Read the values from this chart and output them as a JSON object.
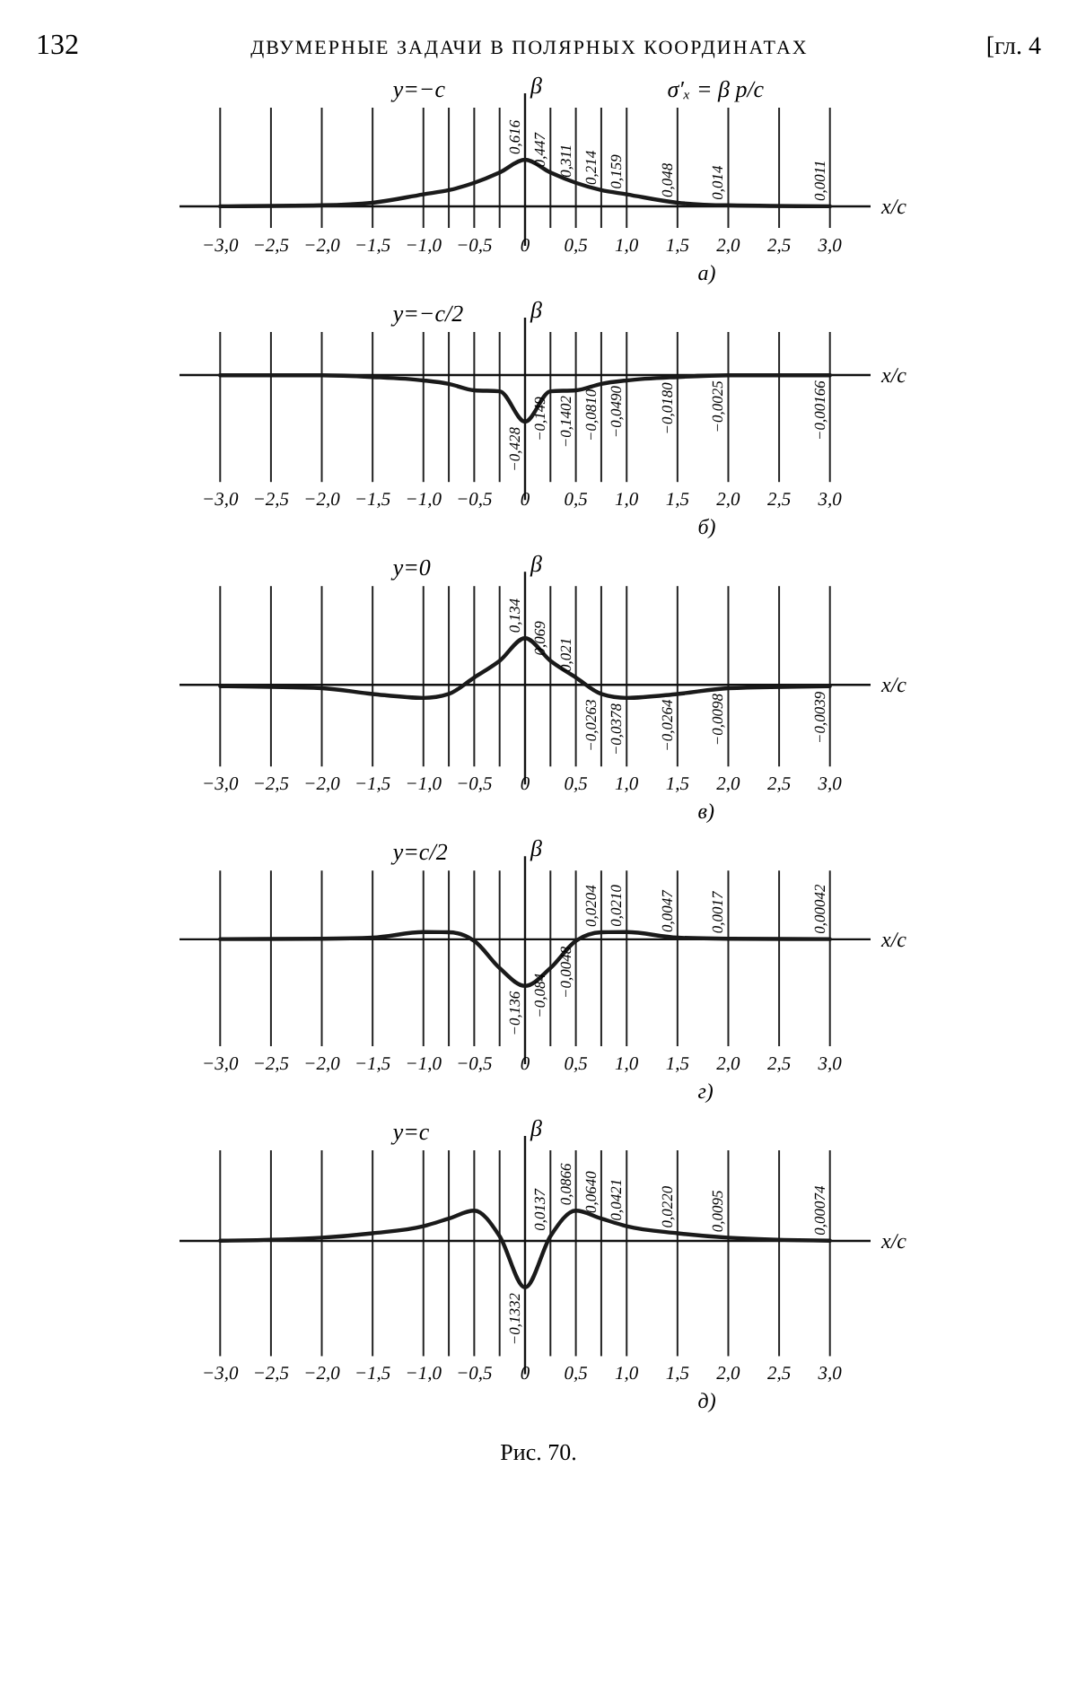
{
  "chart_data": [
    {
      "type": "line",
      "title": "y=−c",
      "xlabel": "x/c",
      "ylabel": "β",
      "annotations": [
        "132",
        "ДВУМЕРНЫЕ ЗАДАЧИ В ПОЛЯРНЫХ КООРДИНАТАХ",
        "[гл. 4",
        "σ′ₓ = β p/c",
        "а)"
      ],
      "xlim": [
        -3.4,
        3.4
      ],
      "xticks": [
        {
          "value": -3,
          "label": "−3,0"
        },
        {
          "value": -2.5,
          "label": "−2,5"
        },
        {
          "value": -2,
          "label": "−2,0"
        },
        {
          "value": -1.5,
          "label": "−1,5"
        },
        {
          "value": -1,
          "label": "−1,0"
        },
        {
          "value": -0.75,
          "label": null
        },
        {
          "value": -0.5,
          "label": "−0,5"
        },
        {
          "value": -0.25,
          "label": null
        },
        {
          "value": 0,
          "label": "0"
        },
        {
          "value": 0.25,
          "label": null
        },
        {
          "value": 0.5,
          "label": "0,5"
        },
        {
          "value": 0.75,
          "label": null
        },
        {
          "value": 1,
          "label": "1,0"
        },
        {
          "value": 1.5,
          "label": "1,5"
        },
        {
          "value": 2,
          "label": "2,0"
        },
        {
          "value": 2.5,
          "label": "2,5"
        },
        {
          "value": 3,
          "label": "3,0"
        }
      ],
      "grid": "x",
      "tick_labels": "x",
      "color": "#1a1a1a",
      "x": [
        -3,
        -2,
        -1.5,
        -1,
        -0.75,
        -0.5,
        -0.25,
        0,
        0.25,
        0.5,
        0.75,
        1,
        1.5,
        2,
        3
      ],
      "values": [
        0.0011,
        0.014,
        0.048,
        0.159,
        0.214,
        0.311,
        0.447,
        0.616,
        0.447,
        0.311,
        0.214,
        0.159,
        0.048,
        0.014,
        0.0011
      ],
      "value_labels": [
        null,
        null,
        null,
        null,
        null,
        null,
        null,
        "0,616",
        "0,447",
        "0,311",
        "0,214",
        "0,159",
        "0,048",
        "0,014",
        "0,0011"
      ]
    },
    {
      "type": "line",
      "title": "y=−c/2",
      "xlabel": "x/c",
      "ylabel": "β",
      "annotations": [
        "б)"
      ],
      "xlim": [
        -3.4,
        3.4
      ],
      "xticks": [
        {
          "value": -3,
          "label": "−3,0"
        },
        {
          "value": -2.5,
          "label": "−2,5"
        },
        {
          "value": -2,
          "label": "−2,0"
        },
        {
          "value": -1.5,
          "label": "−1,5"
        },
        {
          "value": -1,
          "label": "−1,0"
        },
        {
          "value": -0.75,
          "label": null
        },
        {
          "value": -0.5,
          "label": "−0,5"
        },
        {
          "value": -0.25,
          "label": null
        },
        {
          "value": 0,
          "label": "0"
        },
        {
          "value": 0.25,
          "label": null
        },
        {
          "value": 0.5,
          "label": "0,5"
        },
        {
          "value": 0.75,
          "label": null
        },
        {
          "value": 1,
          "label": "1,0"
        },
        {
          "value": 1.5,
          "label": "1,5"
        },
        {
          "value": 2,
          "label": "2,0"
        },
        {
          "value": 2.5,
          "label": "2,5"
        },
        {
          "value": 3,
          "label": "3,0"
        }
      ],
      "grid": "x",
      "tick_labels": "x",
      "color": "#1a1a1a",
      "x": [
        -3,
        -2,
        -1.5,
        -1,
        -0.75,
        -0.5,
        -0.25,
        0,
        0.25,
        0.5,
        0.75,
        1,
        1.5,
        2,
        3
      ],
      "values": [
        -0.00166,
        -0.0025,
        -0.018,
        -0.049,
        -0.081,
        -0.1402,
        -0.149,
        -0.428,
        -0.149,
        -0.1402,
        -0.081,
        -0.049,
        -0.018,
        -0.0025,
        -0.00166
      ],
      "value_labels": [
        null,
        null,
        null,
        null,
        null,
        null,
        null,
        "−0,428",
        "−0,149",
        "−0,1402",
        "−0,0810",
        "−0,0490",
        "−0,0180",
        "−0,0025",
        "−0,00166"
      ]
    },
    {
      "type": "line",
      "title": "y=0",
      "xlabel": "x/c",
      "ylabel": "β",
      "annotations": [
        "в)"
      ],
      "xlim": [
        -3.4,
        3.4
      ],
      "xticks": [
        {
          "value": -3,
          "label": "−3,0"
        },
        {
          "value": -2.5,
          "label": "−2,5"
        },
        {
          "value": -2,
          "label": "−2,0"
        },
        {
          "value": -1.5,
          "label": "−1,5"
        },
        {
          "value": -1,
          "label": "−1,0"
        },
        {
          "value": -0.75,
          "label": null
        },
        {
          "value": -0.5,
          "label": "−0,5"
        },
        {
          "value": -0.25,
          "label": null
        },
        {
          "value": 0,
          "label": "0"
        },
        {
          "value": 0.25,
          "label": null
        },
        {
          "value": 0.5,
          "label": "0,5"
        },
        {
          "value": 0.75,
          "label": null
        },
        {
          "value": 1,
          "label": "1,0"
        },
        {
          "value": 1.5,
          "label": "1,5"
        },
        {
          "value": 2,
          "label": "2,0"
        },
        {
          "value": 2.5,
          "label": "2,5"
        },
        {
          "value": 3,
          "label": "3,0"
        }
      ],
      "grid": "x",
      "tick_labels": "x",
      "color": "#1a1a1a",
      "x": [
        -3,
        -2,
        -1.5,
        -1,
        -0.75,
        -0.5,
        -0.25,
        0,
        0.25,
        0.5,
        0.75,
        1,
        1.5,
        2,
        3
      ],
      "values": [
        -0.0039,
        -0.0098,
        -0.0264,
        -0.0378,
        -0.0263,
        0.021,
        0.069,
        0.134,
        0.069,
        0.021,
        -0.0263,
        -0.0378,
        -0.0264,
        -0.0098,
        -0.0039
      ],
      "value_labels": [
        null,
        null,
        null,
        null,
        null,
        null,
        null,
        "0,134",
        "0,069",
        "0,021",
        "−0,0263",
        "−0,0378",
        "−0,0264",
        "−0,0098",
        "−0,0039"
      ]
    },
    {
      "type": "line",
      "title": "y=c/2",
      "xlabel": "x/c",
      "ylabel": "β",
      "annotations": [
        "г)"
      ],
      "xlim": [
        -3.4,
        3.4
      ],
      "xticks": [
        {
          "value": -3,
          "label": "−3,0"
        },
        {
          "value": -2.5,
          "label": "−2,5"
        },
        {
          "value": -2,
          "label": "−2,0"
        },
        {
          "value": -1.5,
          "label": "−1,5"
        },
        {
          "value": -1,
          "label": "−1,0"
        },
        {
          "value": -0.75,
          "label": null
        },
        {
          "value": -0.5,
          "label": "−0,5"
        },
        {
          "value": -0.25,
          "label": null
        },
        {
          "value": 0,
          "label": "0"
        },
        {
          "value": 0.25,
          "label": null
        },
        {
          "value": 0.5,
          "label": "0,5"
        },
        {
          "value": 0.75,
          "label": null
        },
        {
          "value": 1,
          "label": "1,0"
        },
        {
          "value": 1.5,
          "label": "1,5"
        },
        {
          "value": 2,
          "label": "2,0"
        },
        {
          "value": 2.5,
          "label": "2,5"
        },
        {
          "value": 3,
          "label": "3,0"
        }
      ],
      "grid": "x",
      "tick_labels": "x",
      "color": "#1a1a1a",
      "x": [
        -3,
        -2,
        -1.5,
        -1,
        -0.75,
        -0.5,
        -0.25,
        0,
        0.25,
        0.5,
        0.75,
        1,
        1.5,
        2,
        3
      ],
      "values": [
        0.00042,
        0.0017,
        0.0047,
        0.021,
        0.0204,
        -0.0048,
        -0.084,
        -0.136,
        -0.084,
        -0.0048,
        0.0204,
        0.021,
        0.0047,
        0.0017,
        0.00042
      ],
      "value_labels": [
        null,
        null,
        null,
        null,
        null,
        null,
        null,
        "−0,136",
        "−0,084",
        "−0,0048",
        "0,0204",
        "0,0210",
        "0,0047",
        "0,0017",
        "0,00042"
      ]
    },
    {
      "type": "line",
      "title": "y=c",
      "xlabel": "x/c",
      "ylabel": "β",
      "annotations": [
        "д)",
        "Рис. 70."
      ],
      "xlim": [
        -3.4,
        3.4
      ],
      "xticks": [
        {
          "value": -3,
          "label": "−3,0"
        },
        {
          "value": -2.5,
          "label": "−2,5"
        },
        {
          "value": -2,
          "label": "−2,0"
        },
        {
          "value": -1.5,
          "label": "−1,5"
        },
        {
          "value": -1,
          "label": "−1,0"
        },
        {
          "value": -0.75,
          "label": null
        },
        {
          "value": -0.5,
          "label": "−0,5"
        },
        {
          "value": -0.25,
          "label": null
        },
        {
          "value": 0,
          "label": "0"
        },
        {
          "value": 0.25,
          "label": null
        },
        {
          "value": 0.5,
          "label": "0,5"
        },
        {
          "value": 0.75,
          "label": null
        },
        {
          "value": 1,
          "label": "1,0"
        },
        {
          "value": 1.5,
          "label": "1,5"
        },
        {
          "value": 2,
          "label": "2,0"
        },
        {
          "value": 2.5,
          "label": "2,5"
        },
        {
          "value": 3,
          "label": "3,0"
        }
      ],
      "grid": "x",
      "tick_labels": "x",
      "color": "#1a1a1a",
      "x": [
        -3,
        -2,
        -1.5,
        -1,
        -0.75,
        -0.5,
        -0.25,
        0,
        0.25,
        0.5,
        0.75,
        1,
        1.5,
        2,
        3
      ],
      "values": [
        0.00074,
        0.0095,
        0.022,
        0.0421,
        0.064,
        0.0866,
        0.0137,
        -0.1332,
        0.0137,
        0.0866,
        0.064,
        0.0421,
        0.022,
        0.0095,
        0.00074
      ],
      "value_labels": [
        null,
        null,
        null,
        null,
        null,
        null,
        null,
        "−0,1332",
        "0,0137",
        "0,0866",
        "0,0640",
        "0,0421",
        "0,0220",
        "0,0095",
        "0,00074"
      ]
    }
  ]
}
